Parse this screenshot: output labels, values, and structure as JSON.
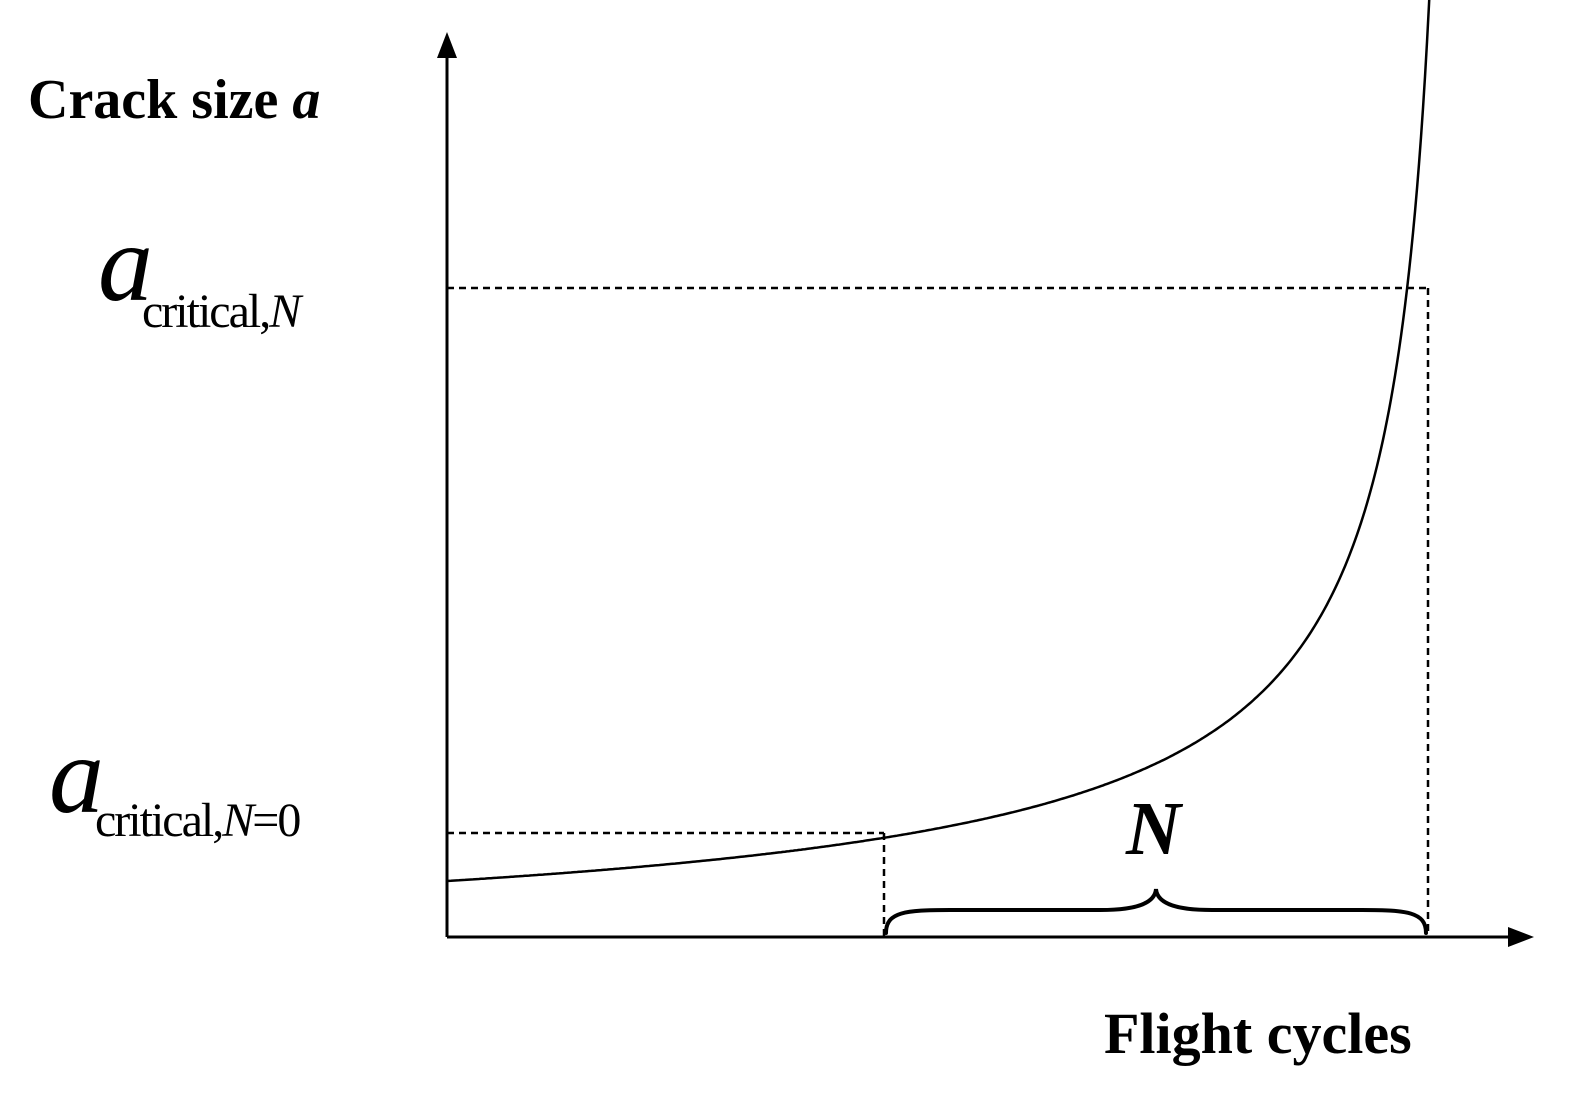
{
  "y_axis_label": {
    "text": "Crack size ",
    "variable": "a"
  },
  "x_axis_label": "Flight cycles",
  "upper_level": {
    "symbol": "a",
    "subscript": "critical,",
    "subscript_var": "N",
    "subscript_suffix": ""
  },
  "lower_level": {
    "symbol": "a",
    "subscript": "critical,",
    "subscript_var": "N",
    "subscript_suffix": "=0"
  },
  "interval_label": "N",
  "colors": {
    "ink": "#000000",
    "background": "#ffffff"
  }
}
